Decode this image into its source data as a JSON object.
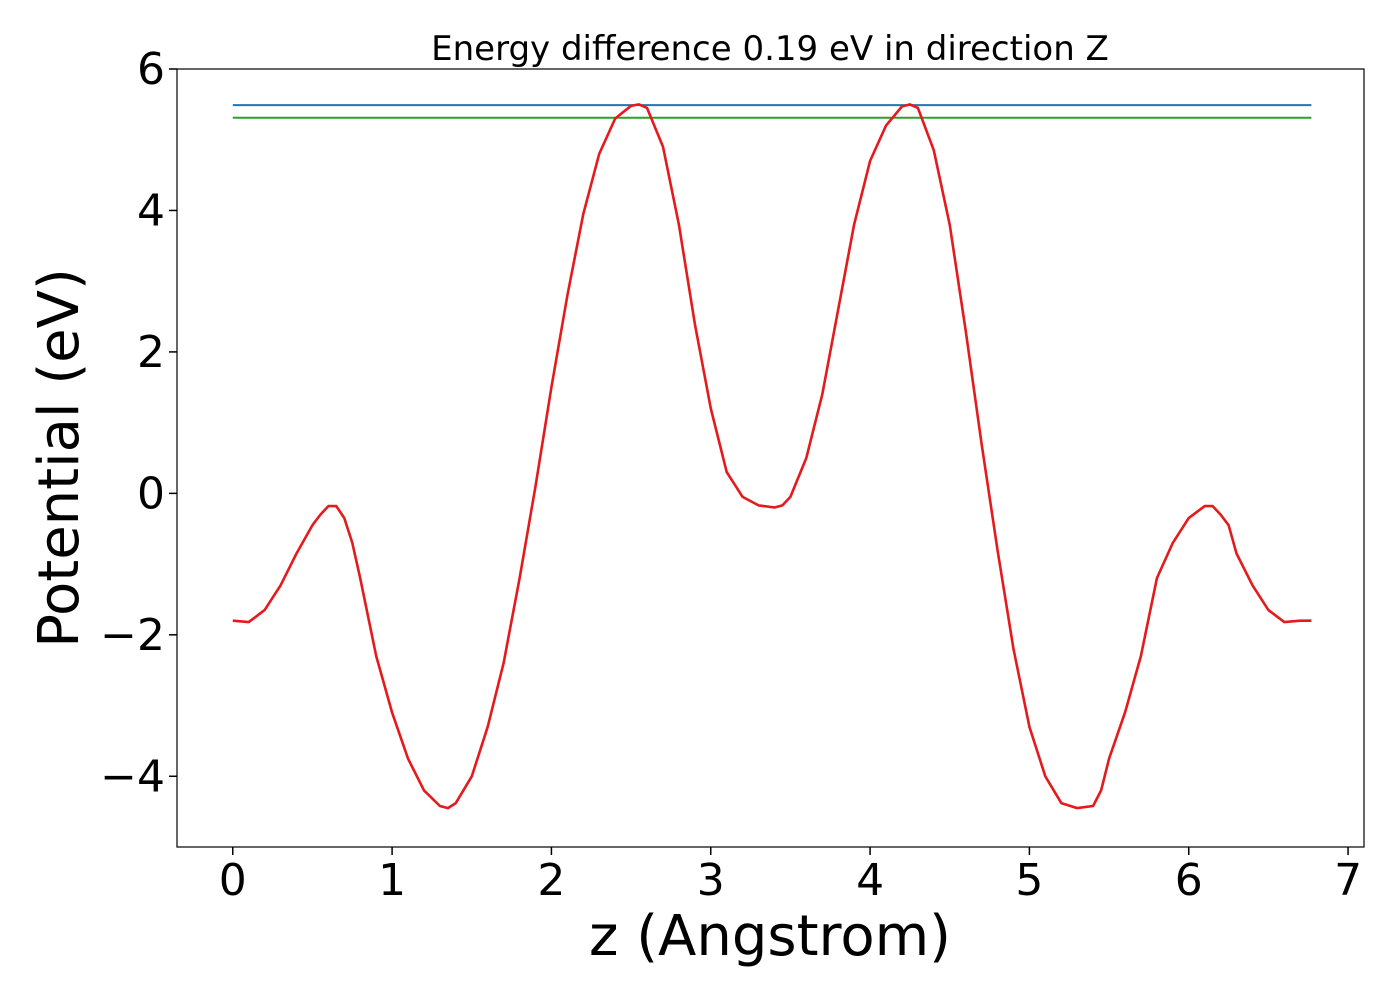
{
  "chart_data": {
    "type": "line",
    "title": "Energy difference 0.19 eV in direction Z",
    "xlabel": "z (Angstrom)",
    "ylabel": "Potential (eV)",
    "xlim": [
      -0.35,
      7.1
    ],
    "ylim": [
      -5,
      6
    ],
    "xticks": [
      0,
      1,
      2,
      3,
      4,
      5,
      6,
      7
    ],
    "xtick_labels": [
      "0",
      "1",
      "2",
      "3",
      "4",
      "5",
      "6",
      "7"
    ],
    "yticks": [
      -4,
      -2,
      0,
      2,
      4,
      6
    ],
    "ytick_labels": [
      "−4",
      "−2",
      "0",
      "2",
      "4",
      "6"
    ],
    "grid": false,
    "series": [
      {
        "color": "#1f77b4",
        "x": [
          0,
          6.77
        ],
        "y": [
          5.49,
          5.49
        ]
      },
      {
        "color": "#2ca02c",
        "x": [
          0,
          6.77
        ],
        "y": [
          5.31,
          5.31
        ]
      },
      {
        "color": "#e41a1c",
        "x": [
          0.0,
          0.1,
          0.2,
          0.3,
          0.4,
          0.5,
          0.55,
          0.6,
          0.65,
          0.7,
          0.75,
          0.8,
          0.9,
          1.0,
          1.1,
          1.2,
          1.3,
          1.35,
          1.4,
          1.5,
          1.6,
          1.7,
          1.8,
          1.9,
          2.0,
          2.1,
          2.2,
          2.3,
          2.4,
          2.5,
          2.55,
          2.6,
          2.7,
          2.8,
          2.9,
          3.0,
          3.1,
          3.2,
          3.3,
          3.4,
          3.45,
          3.5,
          3.6,
          3.7,
          3.8,
          3.9,
          4.0,
          4.1,
          4.2,
          4.25,
          4.3,
          4.4,
          4.5,
          4.6,
          4.7,
          4.8,
          4.9,
          5.0,
          5.1,
          5.2,
          5.3,
          5.4,
          5.45,
          5.5,
          5.6,
          5.7,
          5.8,
          5.9,
          6.0,
          6.1,
          6.15,
          6.2,
          6.25,
          6.3,
          6.4,
          6.5,
          6.6,
          6.7,
          6.77
        ],
        "y": [
          -1.8,
          -1.82,
          -1.65,
          -1.3,
          -0.85,
          -0.45,
          -0.3,
          -0.18,
          -0.18,
          -0.35,
          -0.7,
          -1.2,
          -2.3,
          -3.1,
          -3.75,
          -4.2,
          -4.42,
          -4.45,
          -4.38,
          -4.0,
          -3.3,
          -2.4,
          -1.2,
          0.1,
          1.5,
          2.8,
          3.95,
          4.8,
          5.3,
          5.48,
          5.5,
          5.45,
          4.9,
          3.8,
          2.4,
          1.2,
          0.3,
          -0.05,
          -0.17,
          -0.2,
          -0.17,
          -0.05,
          0.5,
          1.4,
          2.6,
          3.8,
          4.7,
          5.2,
          5.47,
          5.5,
          5.45,
          4.85,
          3.8,
          2.3,
          0.7,
          -0.8,
          -2.2,
          -3.3,
          -4.0,
          -4.38,
          -4.45,
          -4.42,
          -4.2,
          -3.75,
          -3.1,
          -2.3,
          -1.2,
          -0.7,
          -0.35,
          -0.18,
          -0.18,
          -0.3,
          -0.45,
          -0.85,
          -1.3,
          -1.65,
          -1.82,
          -1.8,
          -1.8
        ]
      }
    ]
  }
}
